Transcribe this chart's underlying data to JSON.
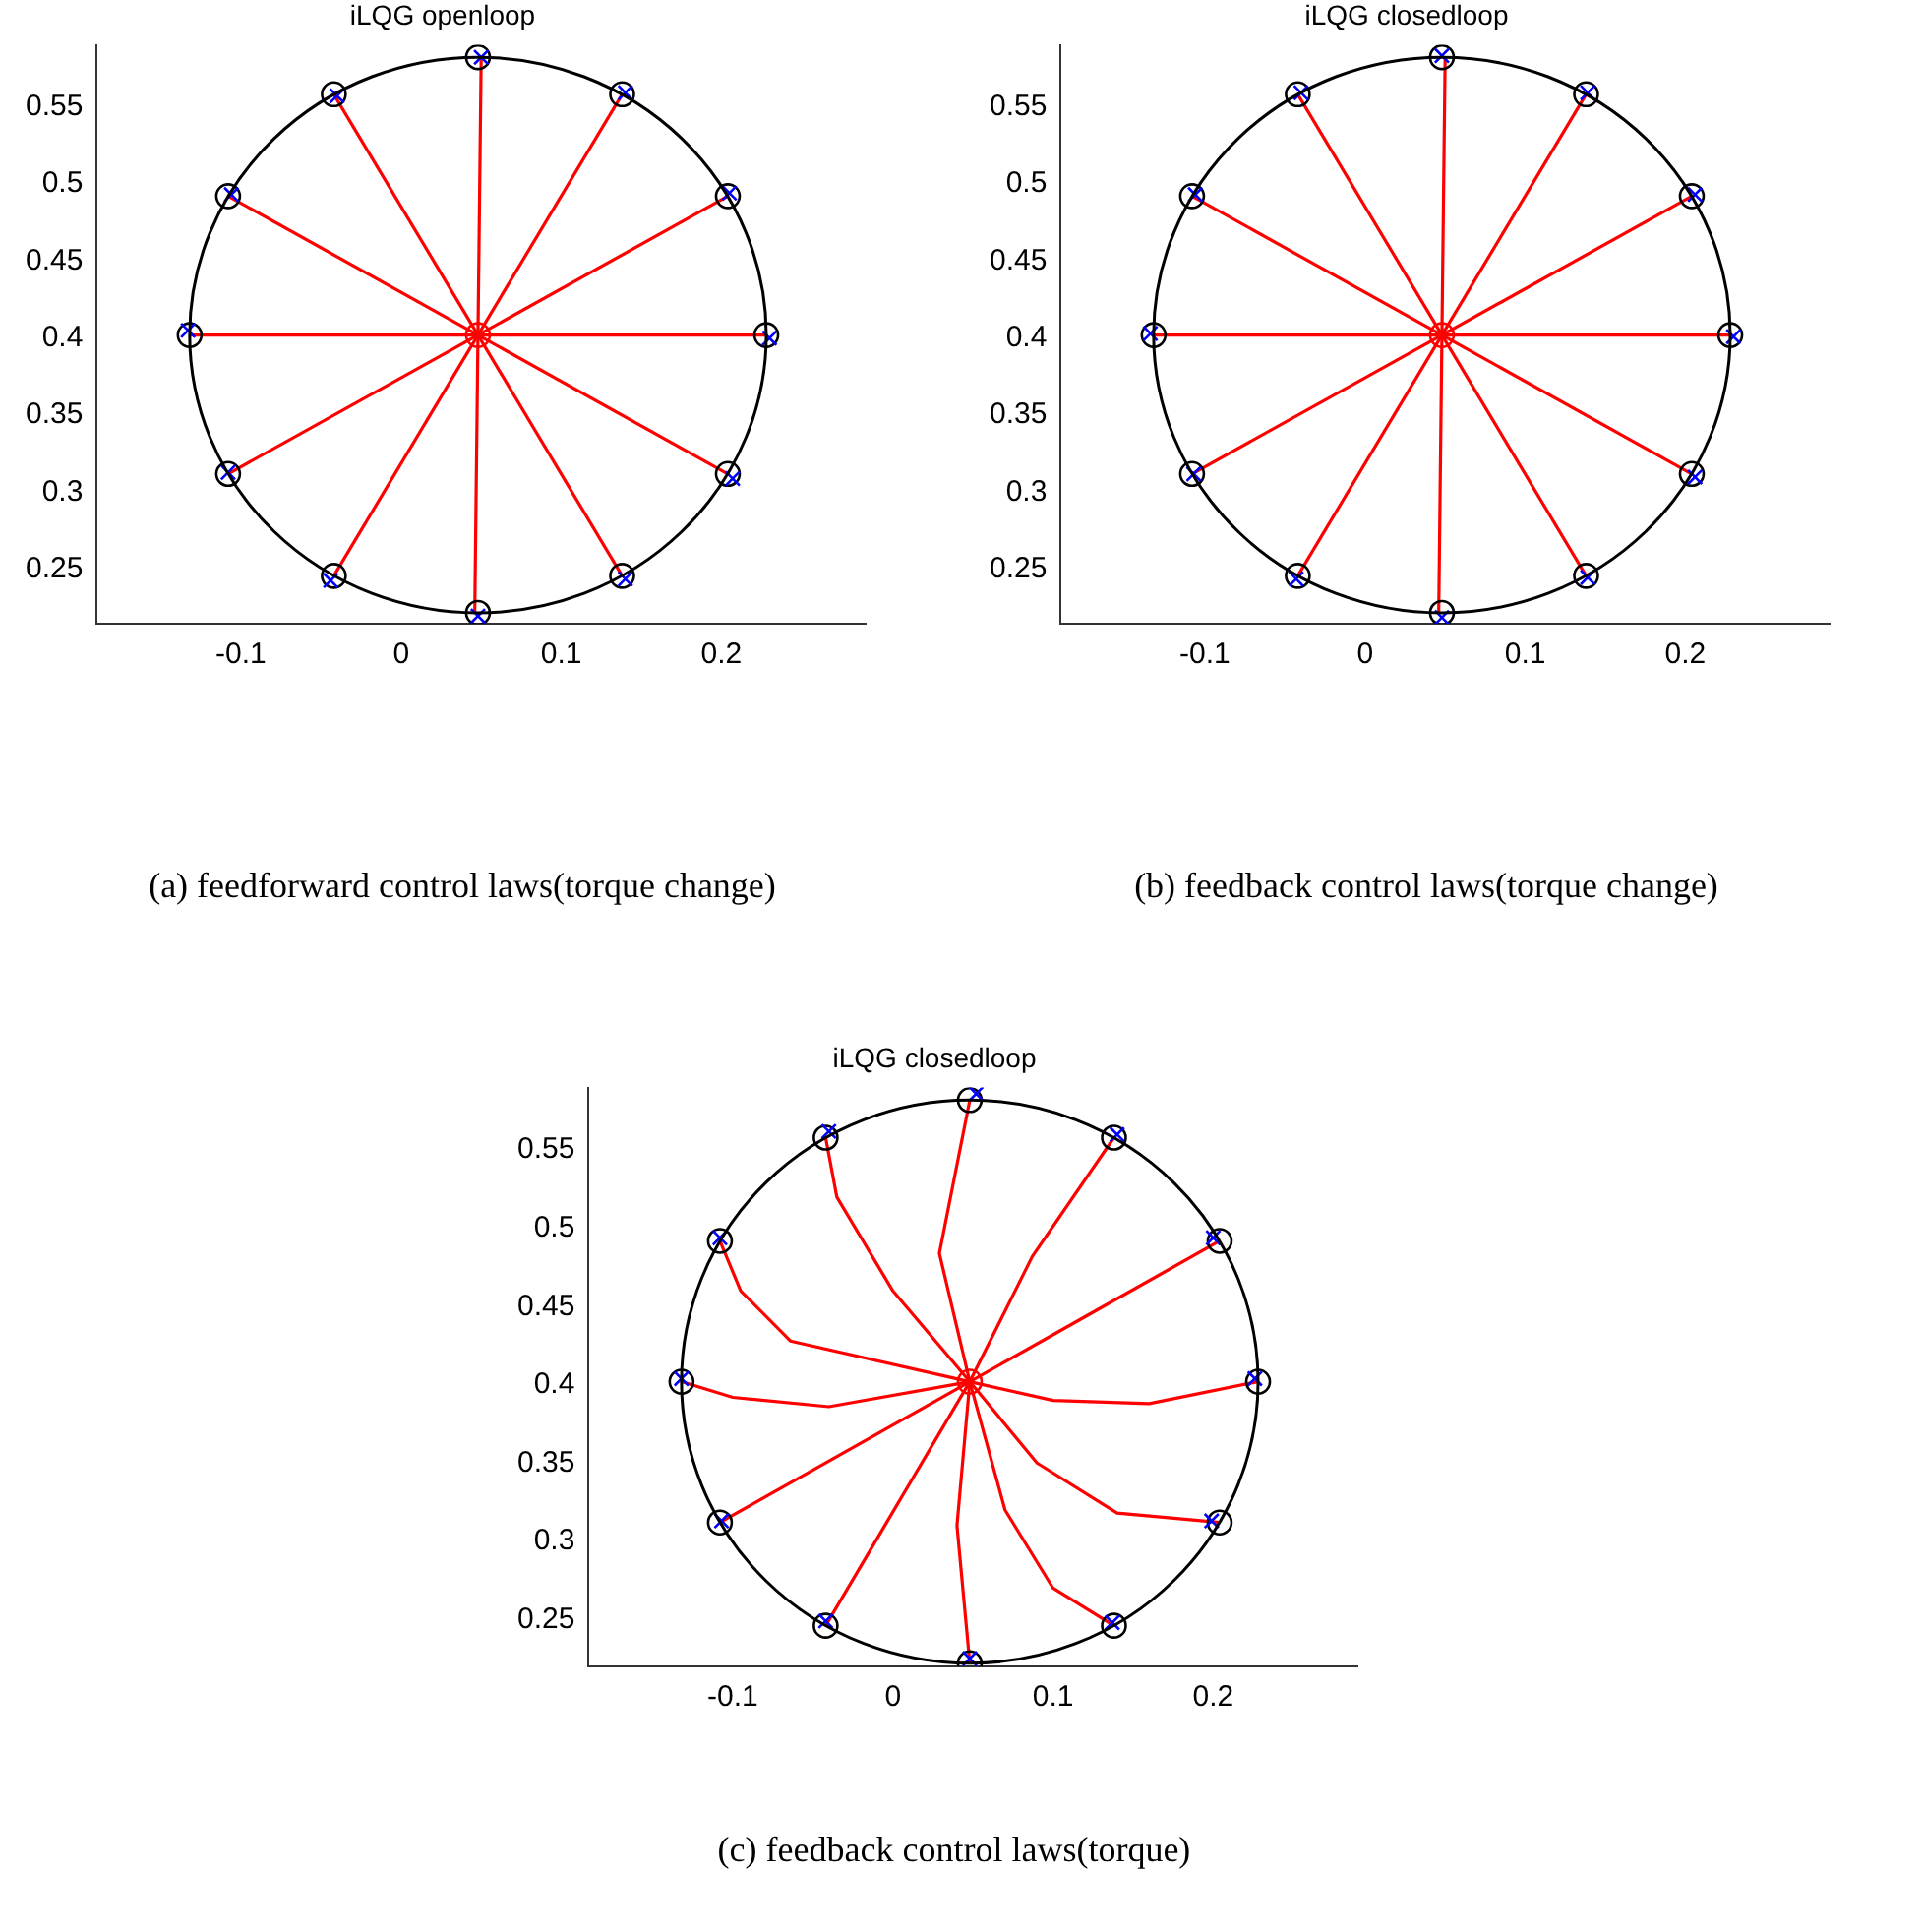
{
  "chart_data": [
    {
      "type": "line",
      "title": "iLQG openloop",
      "xlim": [
        -0.19,
        0.29
      ],
      "ylim": [
        0.215,
        0.59
      ],
      "xticks": [
        -0.1,
        0,
        0.1,
        0.2
      ],
      "yticks": [
        0.25,
        0.3,
        0.35,
        0.4,
        0.45,
        0.5,
        0.55
      ],
      "grid": false,
      "legend": false,
      "annotations": [
        "(a) feedforward control laws(torque change)"
      ],
      "series": [
        {
          "type": "line",
          "color": "#ff0000",
          "x": [
            0.048,
            0.228
          ],
          "values": [
            0.402,
            0.402
          ]
        },
        {
          "type": "line",
          "color": "#ff0000",
          "x": [
            0.048,
            0.204
          ],
          "values": [
            0.402,
            0.492
          ]
        },
        {
          "type": "line",
          "color": "#ff0000",
          "x": [
            0.048,
            0.138
          ],
          "values": [
            0.402,
            0.558
          ]
        },
        {
          "type": "line",
          "color": "#ff0000",
          "x": [
            0.048,
            0.05
          ],
          "values": [
            0.402,
            0.582
          ]
        },
        {
          "type": "line",
          "color": "#ff0000",
          "x": [
            0.048,
            -0.042
          ],
          "values": [
            0.402,
            0.558
          ]
        },
        {
          "type": "line",
          "color": "#ff0000",
          "x": [
            0.048,
            -0.108
          ],
          "values": [
            0.402,
            0.492
          ]
        },
        {
          "type": "line",
          "color": "#ff0000",
          "x": [
            0.048,
            -0.132
          ],
          "values": [
            0.402,
            0.402
          ]
        },
        {
          "type": "line",
          "color": "#ff0000",
          "x": [
            0.048,
            -0.108
          ],
          "values": [
            0.402,
            0.312
          ]
        },
        {
          "type": "line",
          "color": "#ff0000",
          "x": [
            0.048,
            -0.042
          ],
          "values": [
            0.402,
            0.246
          ]
        },
        {
          "type": "line",
          "color": "#ff0000",
          "x": [
            0.048,
            0.046
          ],
          "values": [
            0.402,
            0.222
          ]
        },
        {
          "type": "line",
          "color": "#ff0000",
          "x": [
            0.048,
            0.138
          ],
          "values": [
            0.402,
            0.246
          ]
        },
        {
          "type": "line",
          "color": "#ff0000",
          "x": [
            0.048,
            0.204
          ],
          "values": [
            0.402,
            0.312
          ]
        },
        {
          "type": "scatter",
          "color": "#0000ff",
          "marker": "cross",
          "x": [
            0.23,
            0.205,
            0.14,
            0.05,
            -0.04,
            -0.106,
            -0.133,
            -0.108,
            -0.044,
            0.048,
            0.14,
            0.207
          ],
          "values": [
            0.4,
            0.494,
            0.559,
            0.582,
            0.557,
            0.493,
            0.405,
            0.313,
            0.243,
            0.22,
            0.244,
            0.309
          ]
        },
        {
          "type": "scatter",
          "color": "#000000",
          "marker": "circle",
          "x": [
            0.228,
            0.204,
            0.138,
            0.048,
            -0.042,
            -0.108,
            -0.132,
            -0.108,
            -0.042,
            0.048,
            0.138,
            0.204
          ],
          "values": [
            0.402,
            0.492,
            0.558,
            0.582,
            0.558,
            0.492,
            0.402,
            0.312,
            0.246,
            0.222,
            0.246,
            0.312
          ]
        },
        {
          "type": "scatter",
          "color": "#ff0000",
          "marker": "circle",
          "x": [
            0.048
          ],
          "values": [
            0.402
          ]
        }
      ]
    },
    {
      "type": "line",
      "title": "iLQG closedloop",
      "xlim": [
        -0.19,
        0.29
      ],
      "ylim": [
        0.215,
        0.59
      ],
      "xticks": [
        -0.1,
        0,
        0.1,
        0.2
      ],
      "yticks": [
        0.25,
        0.3,
        0.35,
        0.4,
        0.45,
        0.5,
        0.55
      ],
      "grid": false,
      "legend": false,
      "annotations": [
        "(b) feedback control laws(torque change)"
      ],
      "series": [
        {
          "type": "line",
          "color": "#ff0000",
          "x": [
            0.048,
            0.228
          ],
          "values": [
            0.402,
            0.402
          ]
        },
        {
          "type": "line",
          "color": "#ff0000",
          "x": [
            0.048,
            0.204
          ],
          "values": [
            0.402,
            0.492
          ]
        },
        {
          "type": "line",
          "color": "#ff0000",
          "x": [
            0.048,
            0.138
          ],
          "values": [
            0.402,
            0.558
          ]
        },
        {
          "type": "line",
          "color": "#ff0000",
          "x": [
            0.048,
            0.05
          ],
          "values": [
            0.402,
            0.582
          ]
        },
        {
          "type": "line",
          "color": "#ff0000",
          "x": [
            0.048,
            -0.042
          ],
          "values": [
            0.402,
            0.558
          ]
        },
        {
          "type": "line",
          "color": "#ff0000",
          "x": [
            0.048,
            -0.108
          ],
          "values": [
            0.402,
            0.492
          ]
        },
        {
          "type": "line",
          "color": "#ff0000",
          "x": [
            0.048,
            -0.132
          ],
          "values": [
            0.402,
            0.402
          ]
        },
        {
          "type": "line",
          "color": "#ff0000",
          "x": [
            0.048,
            -0.108
          ],
          "values": [
            0.402,
            0.312
          ]
        },
        {
          "type": "line",
          "color": "#ff0000",
          "x": [
            0.048,
            -0.042
          ],
          "values": [
            0.402,
            0.246
          ]
        },
        {
          "type": "line",
          "color": "#ff0000",
          "x": [
            0.048,
            0.046
          ],
          "values": [
            0.402,
            0.222
          ]
        },
        {
          "type": "line",
          "color": "#ff0000",
          "x": [
            0.048,
            0.138
          ],
          "values": [
            0.402,
            0.246
          ]
        },
        {
          "type": "line",
          "color": "#ff0000",
          "x": [
            0.048,
            0.204
          ],
          "values": [
            0.402,
            0.312
          ]
        },
        {
          "type": "scatter",
          "color": "#0000ff",
          "marker": "cross",
          "x": [
            0.23,
            0.206,
            0.139,
            0.048,
            -0.04,
            -0.106,
            -0.134,
            -0.107,
            -0.043,
            0.048,
            0.139,
            0.206
          ],
          "values": [
            0.401,
            0.493,
            0.559,
            0.583,
            0.559,
            0.493,
            0.403,
            0.312,
            0.244,
            0.219,
            0.245,
            0.31
          ]
        },
        {
          "type": "scatter",
          "color": "#000000",
          "marker": "circle",
          "x": [
            0.228,
            0.204,
            0.138,
            0.048,
            -0.042,
            -0.108,
            -0.132,
            -0.108,
            -0.042,
            0.048,
            0.138,
            0.204
          ],
          "values": [
            0.402,
            0.492,
            0.558,
            0.582,
            0.558,
            0.492,
            0.402,
            0.312,
            0.246,
            0.222,
            0.246,
            0.312
          ]
        },
        {
          "type": "scatter",
          "color": "#ff0000",
          "marker": "circle",
          "x": [
            0.048
          ],
          "values": [
            0.402
          ]
        }
      ]
    },
    {
      "type": "line",
      "title": "iLQG closedloop",
      "xlim": [
        -0.19,
        0.29
      ],
      "ylim": [
        0.22,
        0.59
      ],
      "xticks": [
        -0.1,
        0,
        0.1,
        0.2
      ],
      "yticks": [
        0.25,
        0.3,
        0.35,
        0.4,
        0.45,
        0.5,
        0.55
      ],
      "grid": false,
      "legend": false,
      "annotations": [
        "(c) feedback control laws(torque)"
      ],
      "series": [
        {
          "type": "line",
          "color": "#ff0000",
          "x": [
            0.048,
            0.1,
            0.16,
            0.228
          ],
          "values": [
            0.402,
            0.39,
            0.388,
            0.402
          ]
        },
        {
          "type": "line",
          "color": "#ff0000",
          "x": [
            0.048,
            0.126,
            0.204
          ],
          "values": [
            0.402,
            0.447,
            0.492
          ]
        },
        {
          "type": "line",
          "color": "#ff0000",
          "x": [
            0.048,
            0.087,
            0.138
          ],
          "values": [
            0.402,
            0.482,
            0.558
          ]
        },
        {
          "type": "line",
          "color": "#ff0000",
          "x": [
            0.048,
            0.029,
            0.048
          ],
          "values": [
            0.402,
            0.484,
            0.582
          ]
        },
        {
          "type": "line",
          "color": "#ff0000",
          "x": [
            0.048,
            0.0,
            -0.035,
            -0.042
          ],
          "values": [
            0.402,
            0.46,
            0.52,
            0.558
          ]
        },
        {
          "type": "line",
          "color": "#ff0000",
          "x": [
            0.048,
            -0.064,
            -0.095,
            -0.108
          ],
          "values": [
            0.402,
            0.428,
            0.46,
            0.492
          ]
        },
        {
          "type": "line",
          "color": "#ff0000",
          "x": [
            0.048,
            -0.04,
            -0.1,
            -0.132
          ],
          "values": [
            0.402,
            0.386,
            0.392,
            0.402
          ]
        },
        {
          "type": "line",
          "color": "#ff0000",
          "x": [
            0.048,
            -0.03,
            -0.108
          ],
          "values": [
            0.402,
            0.357,
            0.312
          ]
        },
        {
          "type": "line",
          "color": "#ff0000",
          "x": [
            0.048,
            0.003,
            -0.042
          ],
          "values": [
            0.402,
            0.324,
            0.246
          ]
        },
        {
          "type": "line",
          "color": "#ff0000",
          "x": [
            0.048,
            0.04,
            0.048
          ],
          "values": [
            0.402,
            0.31,
            0.222
          ]
        },
        {
          "type": "line",
          "color": "#ff0000",
          "x": [
            0.048,
            0.07,
            0.1,
            0.138
          ],
          "values": [
            0.402,
            0.32,
            0.27,
            0.246
          ]
        },
        {
          "type": "line",
          "color": "#ff0000",
          "x": [
            0.048,
            0.09,
            0.14,
            0.204
          ],
          "values": [
            0.402,
            0.35,
            0.318,
            0.312
          ]
        },
        {
          "type": "scatter",
          "color": "#0000ff",
          "marker": "cross",
          "x": [
            0.226,
            0.2,
            0.14,
            0.052,
            -0.04,
            -0.108,
            -0.132,
            -0.107,
            -0.042,
            0.048,
            0.137,
            0.199
          ],
          "values": [
            0.404,
            0.494,
            0.56,
            0.586,
            0.562,
            0.494,
            0.404,
            0.313,
            0.249,
            0.225,
            0.248,
            0.313
          ]
        },
        {
          "type": "scatter",
          "color": "#000000",
          "marker": "circle",
          "x": [
            0.228,
            0.204,
            0.138,
            0.048,
            -0.042,
            -0.108,
            -0.132,
            -0.108,
            -0.042,
            0.048,
            0.138,
            0.204
          ],
          "values": [
            0.402,
            0.492,
            0.558,
            0.582,
            0.558,
            0.492,
            0.402,
            0.312,
            0.246,
            0.222,
            0.246,
            0.312
          ]
        },
        {
          "type": "scatter",
          "color": "#ff0000",
          "marker": "circle",
          "x": [
            0.048
          ],
          "values": [
            0.402
          ]
        }
      ]
    }
  ]
}
